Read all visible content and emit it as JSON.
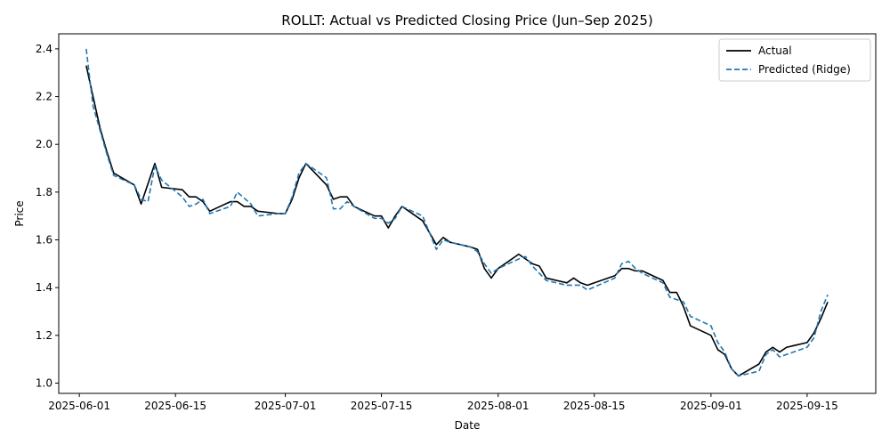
{
  "chart_data": {
    "type": "line",
    "title": "ROLLT: Actual vs Predicted Closing Price (Jun–Sep 2025)",
    "xlabel": "Date",
    "ylabel": "Price",
    "x_ticks": [
      "2025-06-01",
      "2025-06-15",
      "2025-07-01",
      "2025-07-15",
      "2025-08-01",
      "2025-08-15",
      "2025-09-01",
      "2025-09-15"
    ],
    "y_ticks": [
      1.0,
      1.2,
      1.4,
      1.6,
      1.8,
      2.0,
      2.2,
      2.4
    ],
    "xlim": [
      "2025-05-29",
      "2025-09-25"
    ],
    "ylim": [
      0.957,
      2.463
    ],
    "grid": false,
    "legend_position": "top-right",
    "series": [
      {
        "name": "Actual",
        "color": "#000000",
        "style": "solid",
        "points": [
          [
            "2025-06-02",
            2.33
          ],
          [
            "2025-06-03",
            2.2
          ],
          [
            "2025-06-04",
            2.07
          ],
          [
            "2025-06-05",
            1.97
          ],
          [
            "2025-06-06",
            1.88
          ],
          [
            "2025-06-09",
            1.83
          ],
          [
            "2025-06-10",
            1.75
          ],
          [
            "2025-06-12",
            1.92
          ],
          [
            "2025-06-13",
            1.82
          ],
          [
            "2025-06-16",
            1.81
          ],
          [
            "2025-06-17",
            1.78
          ],
          [
            "2025-06-18",
            1.78
          ],
          [
            "2025-06-19",
            1.76
          ],
          [
            "2025-06-20",
            1.72
          ],
          [
            "2025-06-23",
            1.76
          ],
          [
            "2025-06-24",
            1.76
          ],
          [
            "2025-06-25",
            1.74
          ],
          [
            "2025-06-26",
            1.74
          ],
          [
            "2025-06-27",
            1.72
          ],
          [
            "2025-06-30",
            1.71
          ],
          [
            "2025-07-01",
            1.71
          ],
          [
            "2025-07-02",
            1.77
          ],
          [
            "2025-07-03",
            1.86
          ],
          [
            "2025-07-04",
            1.92
          ],
          [
            "2025-07-07",
            1.83
          ],
          [
            "2025-07-08",
            1.77
          ],
          [
            "2025-07-09",
            1.78
          ],
          [
            "2025-07-10",
            1.78
          ],
          [
            "2025-07-11",
            1.74
          ],
          [
            "2025-07-14",
            1.7
          ],
          [
            "2025-07-15",
            1.7
          ],
          [
            "2025-07-16",
            1.65
          ],
          [
            "2025-07-17",
            1.7
          ],
          [
            "2025-07-18",
            1.74
          ],
          [
            "2025-07-21",
            1.68
          ],
          [
            "2025-07-22",
            1.63
          ],
          [
            "2025-07-23",
            1.58
          ],
          [
            "2025-07-24",
            1.61
          ],
          [
            "2025-07-25",
            1.59
          ],
          [
            "2025-07-28",
            1.57
          ],
          [
            "2025-07-29",
            1.56
          ],
          [
            "2025-07-30",
            1.48
          ],
          [
            "2025-07-31",
            1.44
          ],
          [
            "2025-08-01",
            1.48
          ],
          [
            "2025-08-04",
            1.54
          ],
          [
            "2025-08-05",
            1.52
          ],
          [
            "2025-08-06",
            1.5
          ],
          [
            "2025-08-07",
            1.49
          ],
          [
            "2025-08-08",
            1.44
          ],
          [
            "2025-08-11",
            1.42
          ],
          [
            "2025-08-12",
            1.44
          ],
          [
            "2025-08-13",
            1.42
          ],
          [
            "2025-08-14",
            1.41
          ],
          [
            "2025-08-18",
            1.45
          ],
          [
            "2025-08-19",
            1.48
          ],
          [
            "2025-08-20",
            1.48
          ],
          [
            "2025-08-21",
            1.47
          ],
          [
            "2025-08-22",
            1.47
          ],
          [
            "2025-08-25",
            1.43
          ],
          [
            "2025-08-26",
            1.38
          ],
          [
            "2025-08-27",
            1.38
          ],
          [
            "2025-08-28",
            1.32
          ],
          [
            "2025-08-29",
            1.24
          ],
          [
            "2025-09-01",
            1.2
          ],
          [
            "2025-09-02",
            1.14
          ],
          [
            "2025-09-03",
            1.12
          ],
          [
            "2025-09-04",
            1.06
          ],
          [
            "2025-09-05",
            1.03
          ],
          [
            "2025-09-08",
            1.08
          ],
          [
            "2025-09-09",
            1.13
          ],
          [
            "2025-09-10",
            1.15
          ],
          [
            "2025-09-11",
            1.13
          ],
          [
            "2025-09-12",
            1.15
          ],
          [
            "2025-09-15",
            1.17
          ],
          [
            "2025-09-16",
            1.21
          ],
          [
            "2025-09-17",
            1.27
          ],
          [
            "2025-09-18",
            1.34
          ]
        ]
      },
      {
        "name": "Predicted (Ridge)",
        "color": "#1f77b4",
        "style": "dashed",
        "points": [
          [
            "2025-06-02",
            2.4
          ],
          [
            "2025-06-03",
            2.16
          ],
          [
            "2025-06-04",
            2.06
          ],
          [
            "2025-06-05",
            1.96
          ],
          [
            "2025-06-06",
            1.87
          ],
          [
            "2025-06-09",
            1.83
          ],
          [
            "2025-06-10",
            1.77
          ],
          [
            "2025-06-11",
            1.76
          ],
          [
            "2025-06-12",
            1.91
          ],
          [
            "2025-06-13",
            1.85
          ],
          [
            "2025-06-16",
            1.78
          ],
          [
            "2025-06-17",
            1.74
          ],
          [
            "2025-06-18",
            1.75
          ],
          [
            "2025-06-19",
            1.77
          ],
          [
            "2025-06-20",
            1.71
          ],
          [
            "2025-06-23",
            1.74
          ],
          [
            "2025-06-24",
            1.8
          ],
          [
            "2025-06-26",
            1.75
          ],
          [
            "2025-06-27",
            1.7
          ],
          [
            "2025-06-30",
            1.71
          ],
          [
            "2025-07-01",
            1.71
          ],
          [
            "2025-07-02",
            1.78
          ],
          [
            "2025-07-03",
            1.88
          ],
          [
            "2025-07-04",
            1.92
          ],
          [
            "2025-07-07",
            1.86
          ],
          [
            "2025-07-08",
            1.73
          ],
          [
            "2025-07-09",
            1.73
          ],
          [
            "2025-07-10",
            1.76
          ],
          [
            "2025-07-11",
            1.74
          ],
          [
            "2025-07-14",
            1.69
          ],
          [
            "2025-07-15",
            1.69
          ],
          [
            "2025-07-16",
            1.67
          ],
          [
            "2025-07-17",
            1.69
          ],
          [
            "2025-07-18",
            1.74
          ],
          [
            "2025-07-21",
            1.7
          ],
          [
            "2025-07-22",
            1.63
          ],
          [
            "2025-07-23",
            1.56
          ],
          [
            "2025-07-24",
            1.6
          ],
          [
            "2025-07-25",
            1.59
          ],
          [
            "2025-07-28",
            1.57
          ],
          [
            "2025-07-29",
            1.55
          ],
          [
            "2025-07-30",
            1.5
          ],
          [
            "2025-07-31",
            1.46
          ],
          [
            "2025-08-01",
            1.48
          ],
          [
            "2025-08-04",
            1.52
          ],
          [
            "2025-08-05",
            1.53
          ],
          [
            "2025-08-06",
            1.49
          ],
          [
            "2025-08-07",
            1.46
          ],
          [
            "2025-08-08",
            1.43
          ],
          [
            "2025-08-11",
            1.41
          ],
          [
            "2025-08-12",
            1.41
          ],
          [
            "2025-08-13",
            1.41
          ],
          [
            "2025-08-14",
            1.39
          ],
          [
            "2025-08-18",
            1.44
          ],
          [
            "2025-08-19",
            1.5
          ],
          [
            "2025-08-20",
            1.51
          ],
          [
            "2025-08-21",
            1.48
          ],
          [
            "2025-08-22",
            1.46
          ],
          [
            "2025-08-25",
            1.42
          ],
          [
            "2025-08-26",
            1.36
          ],
          [
            "2025-08-27",
            1.35
          ],
          [
            "2025-08-28",
            1.34
          ],
          [
            "2025-08-29",
            1.28
          ],
          [
            "2025-09-01",
            1.24
          ],
          [
            "2025-09-02",
            1.17
          ],
          [
            "2025-09-03",
            1.13
          ],
          [
            "2025-09-04",
            1.06
          ],
          [
            "2025-09-05",
            1.03
          ],
          [
            "2025-09-08",
            1.05
          ],
          [
            "2025-09-09",
            1.12
          ],
          [
            "2025-09-10",
            1.14
          ],
          [
            "2025-09-11",
            1.11
          ],
          [
            "2025-09-12",
            1.12
          ],
          [
            "2025-09-15",
            1.15
          ],
          [
            "2025-09-16",
            1.19
          ],
          [
            "2025-09-17",
            1.3
          ],
          [
            "2025-09-18",
            1.37
          ]
        ]
      }
    ]
  }
}
